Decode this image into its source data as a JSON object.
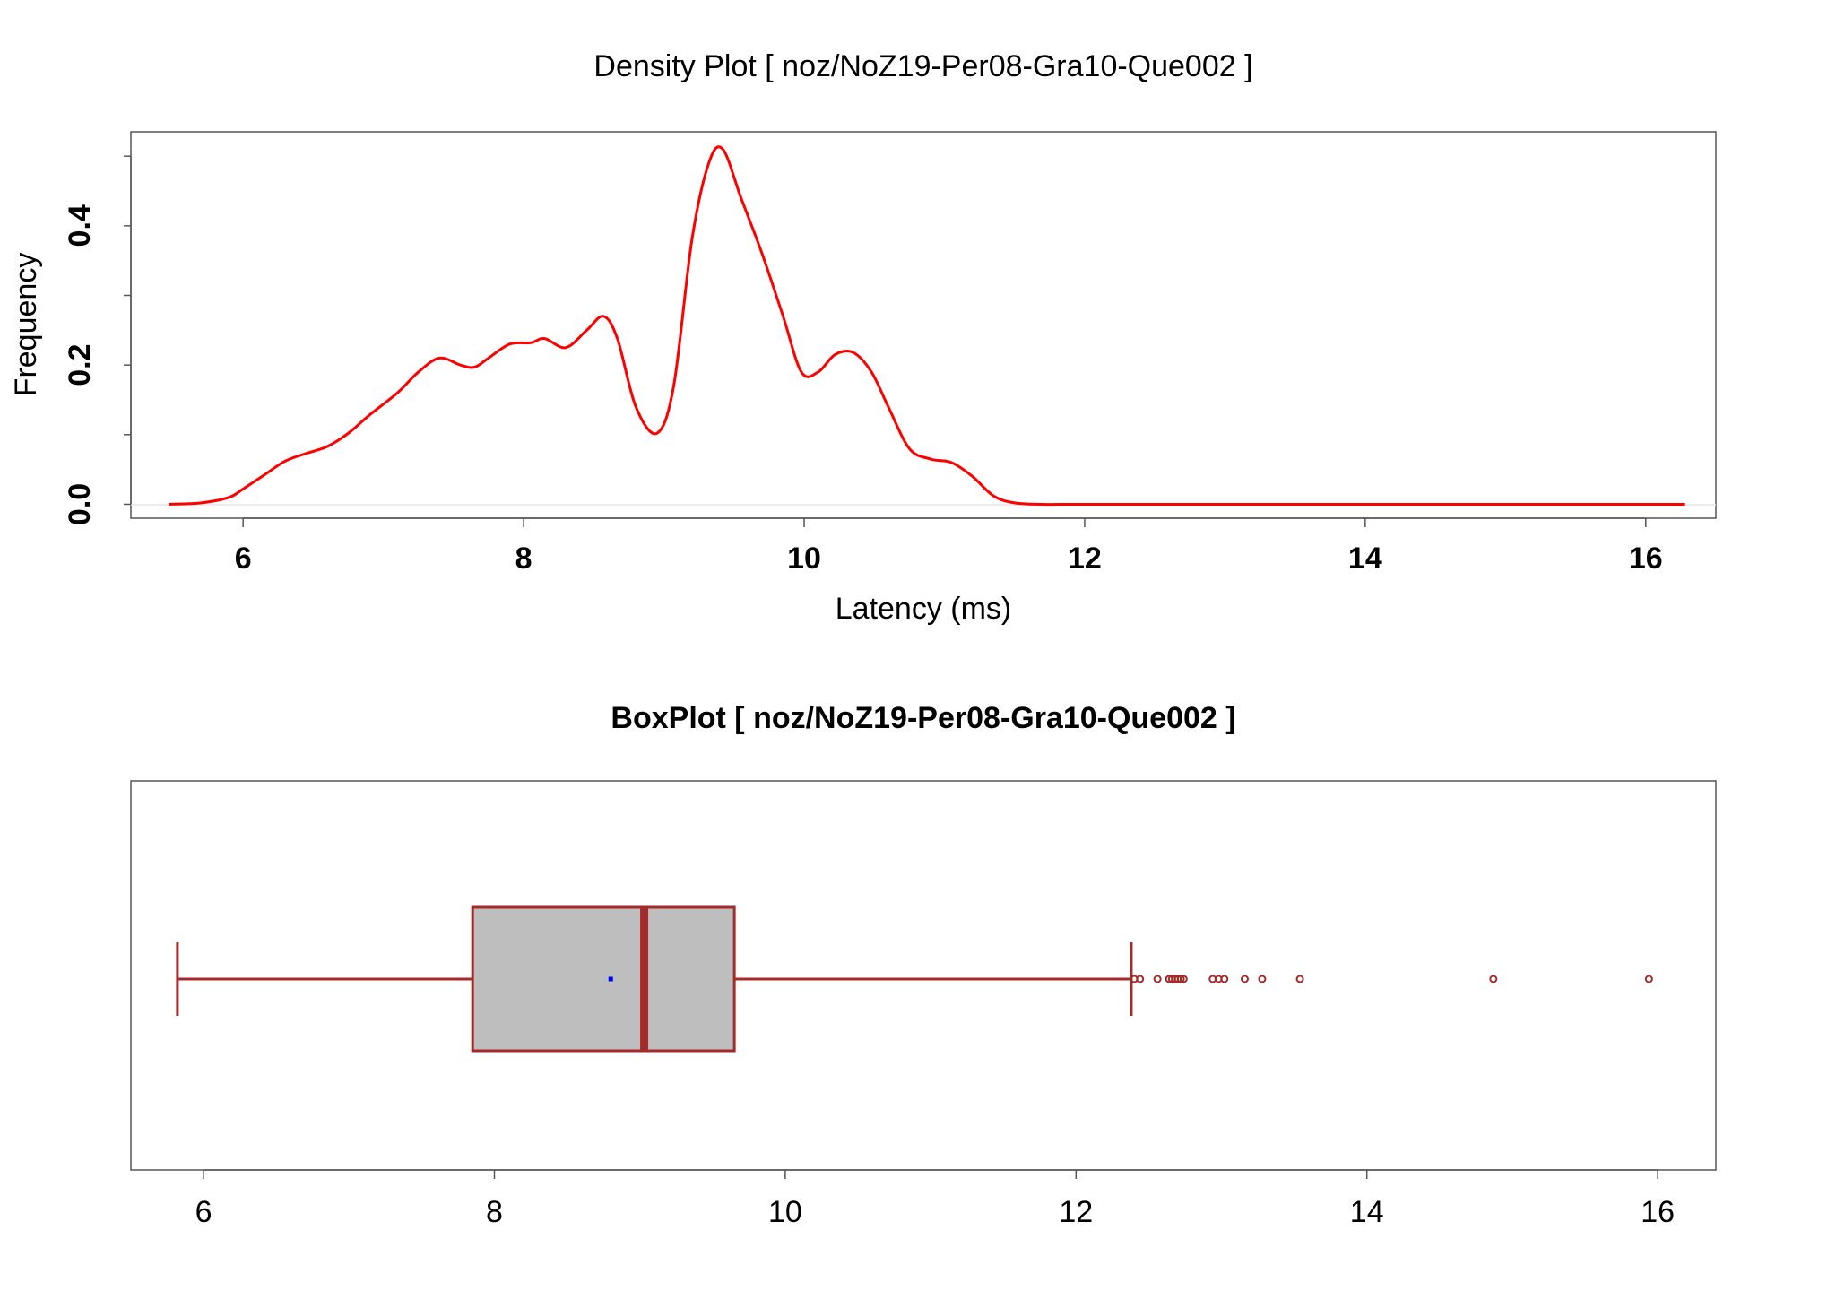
{
  "chart_data": [
    {
      "type": "line",
      "title": "Density Plot [ noz/NoZ19-Per08-Gra10-Que002 ]",
      "xlabel": "Latency (ms)",
      "ylabel": "Frequency",
      "xlim": [
        5.2,
        16.5
      ],
      "ylim": [
        -0.02,
        0.535
      ],
      "x_ticks": [
        6,
        8,
        10,
        12,
        14,
        16
      ],
      "x_tick_labels": [
        "6",
        "8",
        "10",
        "12",
        "14",
        "16"
      ],
      "y_ticks": [
        0.0,
        0.2,
        0.4
      ],
      "y_tick_labels": [
        "0.0",
        "0.2",
        "0.4"
      ],
      "y_minor_ticks": [
        0.1,
        0.3,
        0.5
      ],
      "series": [
        {
          "color": "#ff0000",
          "x": [
            5.47,
            5.7,
            5.9,
            6.0,
            6.15,
            6.3,
            6.45,
            6.6,
            6.75,
            6.9,
            7.1,
            7.25,
            7.4,
            7.55,
            7.65,
            7.75,
            7.9,
            8.05,
            8.15,
            8.3,
            8.45,
            8.57,
            8.67,
            8.8,
            8.95,
            9.07,
            9.2,
            9.32,
            9.42,
            9.55,
            9.7,
            9.85,
            9.98,
            10.1,
            10.22,
            10.35,
            10.48,
            10.6,
            10.75,
            10.9,
            11.05,
            11.2,
            11.35,
            11.5,
            11.7,
            12.0,
            13.0,
            14.0,
            15.0,
            16.28
          ],
          "y": [
            0.0,
            0.002,
            0.01,
            0.022,
            0.042,
            0.062,
            0.073,
            0.083,
            0.102,
            0.128,
            0.16,
            0.19,
            0.21,
            0.2,
            0.197,
            0.21,
            0.23,
            0.232,
            0.238,
            0.225,
            0.25,
            0.27,
            0.237,
            0.14,
            0.102,
            0.17,
            0.38,
            0.49,
            0.51,
            0.44,
            0.36,
            0.27,
            0.19,
            0.19,
            0.215,
            0.218,
            0.19,
            0.14,
            0.08,
            0.065,
            0.06,
            0.04,
            0.012,
            0.002,
            0.0,
            0.0,
            0.0,
            0.0,
            0.0,
            0.0
          ]
        }
      ]
    },
    {
      "type": "box",
      "title": "BoxPlot [ noz/NoZ19-Per08-Gra10-Que002 ]",
      "xlim": [
        5.5,
        16.4
      ],
      "x_ticks": [
        6,
        8,
        10,
        12,
        14,
        16
      ],
      "x_tick_labels": [
        "6",
        "8",
        "10",
        "12",
        "14",
        "16"
      ],
      "whisker_low": 5.82,
      "q1": 7.85,
      "median": 9.03,
      "q3": 9.65,
      "whisker_high": 12.38,
      "mean": 8.8,
      "outliers": [
        12.4,
        12.44,
        12.56,
        12.64,
        12.66,
        12.68,
        12.7,
        12.72,
        12.74,
        12.94,
        12.98,
        13.02,
        13.16,
        13.28,
        13.54,
        14.87,
        15.94
      ],
      "box_color": "#bebebe",
      "line_color": "#a52a2a",
      "mean_color": "#0000ff"
    }
  ]
}
